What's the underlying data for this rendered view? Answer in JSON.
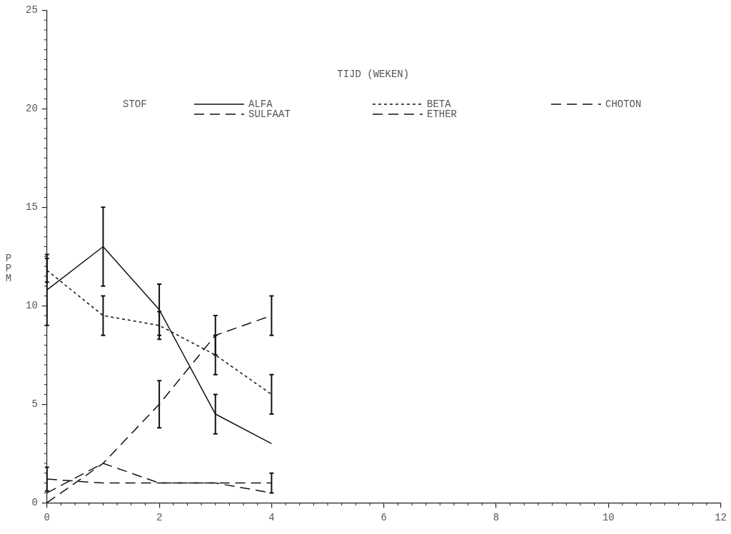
{
  "chart_data": {
    "type": "line",
    "title": "TIJD (WEKEN)",
    "ylabel": "PPM",
    "legend_title": "STOF",
    "x": [
      0,
      1,
      2,
      3,
      4
    ],
    "series": [
      {
        "name": "ALFA",
        "color": "#111111",
        "line_style": "solid",
        "values": [
          10.8,
          13.0,
          9.8,
          4.5,
          3.0
        ],
        "errors": [
          1.8,
          2.0,
          1.3,
          1.0,
          null
        ]
      },
      {
        "name": "BETA",
        "color": "#111111",
        "line_style": "dotted",
        "values": [
          11.8,
          9.5,
          9.0,
          7.5,
          5.5
        ],
        "errors": [
          0.6,
          1.0,
          0.7,
          1.0,
          1.0
        ]
      },
      {
        "name": "CHOTON",
        "color": "#111111",
        "line_style": "dashed",
        "values": [
          0.5,
          2.0,
          1.0,
          1.0,
          0.5
        ],
        "errors": [
          null,
          null,
          null,
          null,
          null
        ]
      },
      {
        "name": "SULFAAT",
        "color": "#111111",
        "line_style": "dashed",
        "values": [
          0.0,
          2.0,
          5.0,
          8.5,
          9.5
        ],
        "errors": [
          null,
          null,
          1.2,
          1.0,
          1.0
        ]
      },
      {
        "name": "ETHER",
        "color": "#111111",
        "line_style": "dashed",
        "values": [
          1.2,
          1.0,
          1.0,
          1.0,
          1.0
        ],
        "errors": [
          0.6,
          null,
          null,
          null,
          0.5
        ]
      }
    ],
    "xlim": [
      0,
      12
    ],
    "xticks": [
      0,
      2,
      4,
      6,
      8,
      10,
      12
    ],
    "ylim": [
      0,
      25
    ],
    "yticks": [
      0,
      5,
      10,
      15,
      20,
      25
    ],
    "grid": false,
    "legend": "top",
    "marker": "none"
  }
}
